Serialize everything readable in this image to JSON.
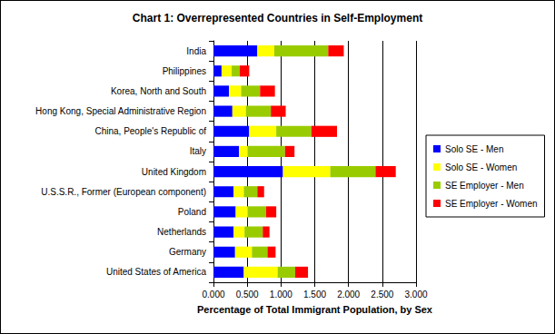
{
  "chart_data": {
    "type": "bar",
    "orientation": "horizontal",
    "stacked": true,
    "title": "Chart 1: Overrepresented Countries in Self-Employment",
    "x_label": "Percentage of Total Immigrant Population, by Sex",
    "categories": [
      "India",
      "Philippines",
      "Korea, North and South",
      "Hong Kong, Special Administrative Region",
      "China, People's Republic of",
      "Italy",
      "United Kingdom",
      "U.S.S.R., Former (European component)",
      "Poland",
      "Netherlands",
      "Germany",
      "United States of America"
    ],
    "series": [
      {
        "name": "Solo SE - Men",
        "color": "#0000FF",
        "values": [
          0.65,
          0.12,
          0.23,
          0.28,
          0.53,
          0.38,
          1.03,
          0.3,
          0.33,
          0.3,
          0.32,
          0.45
        ]
      },
      {
        "name": "Solo SE - Women",
        "color": "#FFFF00",
        "values": [
          0.25,
          0.15,
          0.18,
          0.2,
          0.4,
          0.13,
          0.7,
          0.15,
          0.18,
          0.16,
          0.25,
          0.5
        ]
      },
      {
        "name": "SE Employer - Men",
        "color": "#99CC00",
        "values": [
          0.8,
          0.12,
          0.28,
          0.37,
          0.52,
          0.55,
          0.67,
          0.2,
          0.27,
          0.27,
          0.23,
          0.26
        ]
      },
      {
        "name": "SE Employer - Women",
        "color": "#FF0000",
        "values": [
          0.23,
          0.14,
          0.22,
          0.22,
          0.38,
          0.14,
          0.3,
          0.1,
          0.15,
          0.1,
          0.12,
          0.19
        ]
      }
    ],
    "xlim": [
      0,
      3
    ],
    "xticks": [
      {
        "value": 0,
        "label": "0.000"
      },
      {
        "value": 0.5,
        "label": "0.500"
      },
      {
        "value": 1,
        "label": "1.000"
      },
      {
        "value": 1.5,
        "label": "1.500"
      },
      {
        "value": 2,
        "label": "2.000"
      },
      {
        "value": 2.5,
        "label": "2.500"
      },
      {
        "value": 3,
        "label": "3.000"
      }
    ],
    "grid": true,
    "legend": "right"
  }
}
